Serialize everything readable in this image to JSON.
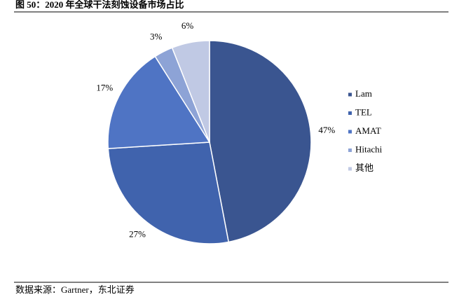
{
  "chart_data": {
    "type": "pie",
    "title": "图 50：2020 年全球干法刻蚀设备市场占比",
    "source": "数据来源：Gartner，东北证券",
    "categories": [
      "Lam",
      "TEL",
      "AMAT",
      "Hitachi",
      "其他"
    ],
    "values": [
      47,
      27,
      17,
      3,
      6
    ],
    "value_labels": [
      "47%",
      "27%",
      "17%",
      "3%",
      "6%"
    ],
    "colors": [
      "#3a5590",
      "#4063ad",
      "#4f74c4",
      "#8da3d6",
      "#c0c9e4"
    ],
    "legend": "right"
  }
}
